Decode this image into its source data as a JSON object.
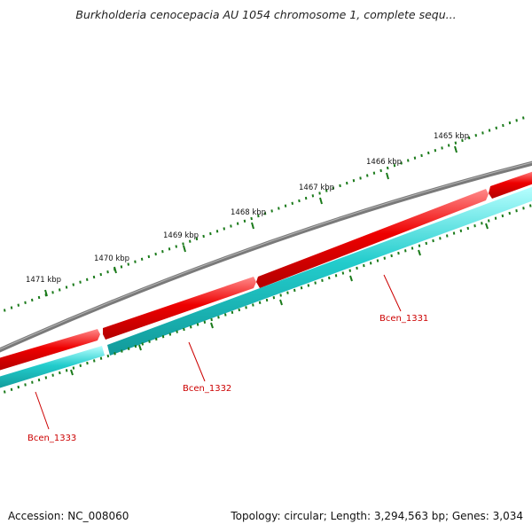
{
  "title": "Burkholderia cenocepacia AU 1054 chromosome 1, complete sequ...",
  "footer": {
    "accession": "Accession: NC_008060",
    "summary": "Topology: circular; Length: 3,294,563 bp; Genes: 3,034"
  },
  "colors": {
    "backbone": "#7a7a7a",
    "forward_gene": "#ee0000",
    "reverse_gene": "#22cccc",
    "ticks": "#1a7a1a",
    "label": "#cc0000"
  },
  "scale_labels": [
    {
      "label": "1465 kbp"
    },
    {
      "label": "1466 kbp"
    },
    {
      "label": "1467 kbp"
    },
    {
      "label": "1468 kbp"
    },
    {
      "label": "1469 kbp"
    },
    {
      "label": "1470 kbp"
    },
    {
      "label": "1471 kbp"
    }
  ],
  "gene_labels": [
    {
      "name": "Bcen_1331"
    },
    {
      "name": "Bcen_1332"
    },
    {
      "name": "Bcen_1333"
    }
  ]
}
